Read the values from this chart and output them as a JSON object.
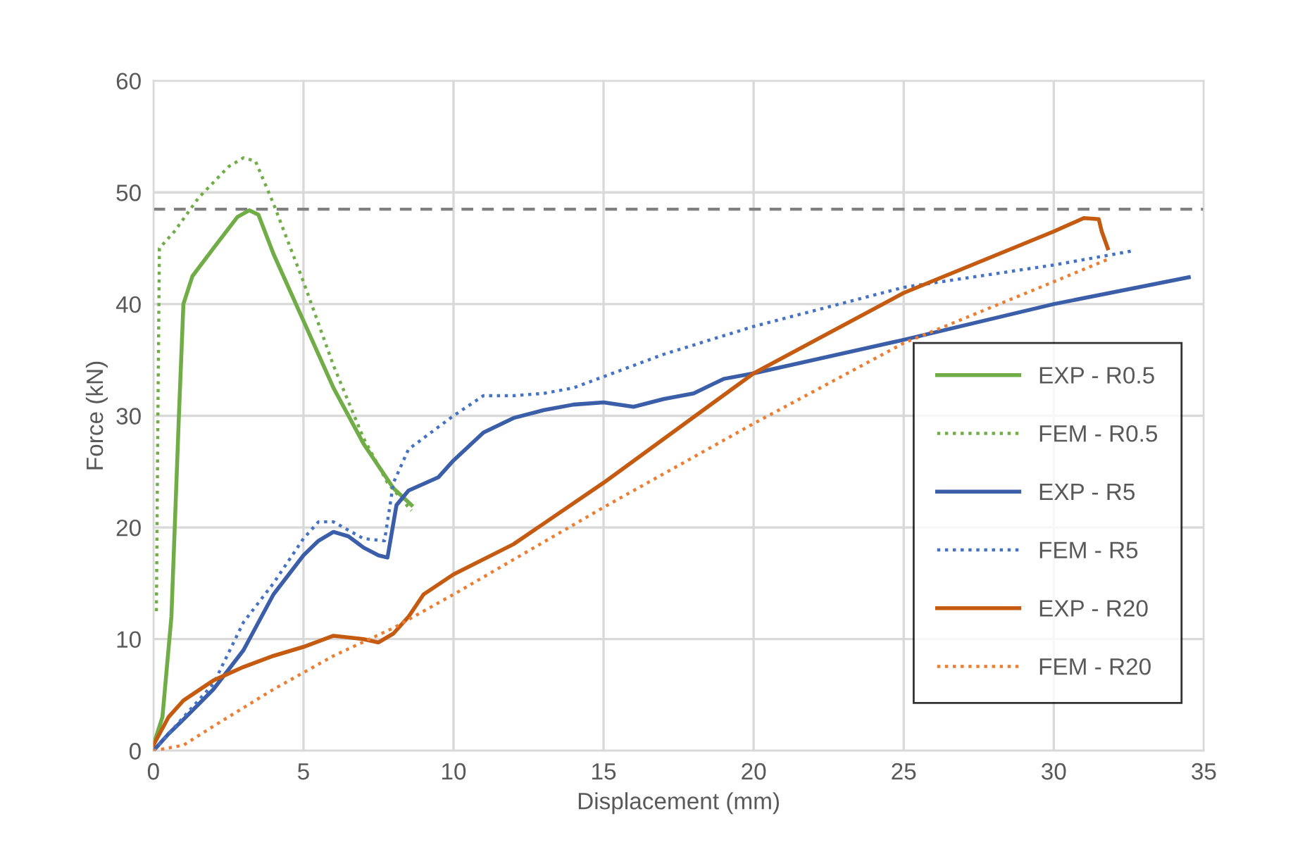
{
  "chart_data": {
    "type": "line",
    "xlabel": "Displacement (mm)",
    "ylabel": "Force (kN)",
    "xlim": [
      0,
      35
    ],
    "xticks": [
      0,
      5,
      10,
      15,
      20,
      25,
      30,
      35
    ],
    "ylim": [
      0,
      60
    ],
    "yticks": [
      0,
      10,
      20,
      30,
      40,
      50,
      60
    ],
    "grid": true,
    "legend": "right",
    "marker": "none",
    "ref_lines": [
      {
        "axis": "y",
        "value": 48.5,
        "color": "#808080",
        "line_style": "dashed"
      }
    ],
    "series": [
      {
        "name": "EXP - R0.5",
        "color": "#70ad47",
        "line_style": "solid",
        "x": [
          0,
          0.3,
          0.6,
          0.85,
          1.0,
          1.3,
          2,
          2.8,
          3.2,
          3.5,
          4,
          5,
          6,
          7,
          8,
          8.6
        ],
        "values": [
          0.5,
          3,
          12,
          30,
          40,
          42.5,
          45,
          47.8,
          48.4,
          48,
          44.5,
          38.5,
          32.5,
          27.5,
          23.5,
          22
        ]
      },
      {
        "name": "FEM - R0.5",
        "color": "#70ad47",
        "line_style": "dotted",
        "x": [
          0.1,
          0.15,
          0.2,
          0.7,
          1.5,
          2.5,
          3,
          3.4,
          4,
          5,
          6,
          7,
          7.8,
          8.6
        ],
        "values": [
          12.5,
          30,
          45,
          46.5,
          49.5,
          52.3,
          53.1,
          52.8,
          49,
          42,
          34.5,
          28,
          24,
          21.5
        ]
      },
      {
        "name": "EXP - R5",
        "color": "#3b5ea8",
        "line_style": "solid",
        "x": [
          0,
          0.5,
          1,
          2,
          3,
          4,
          5,
          5.5,
          6,
          6.5,
          7,
          7.5,
          7.8,
          8.1,
          8.5,
          9.5,
          10,
          11,
          12,
          13,
          14,
          15,
          16,
          17,
          18,
          19,
          20,
          25,
          30,
          34.5
        ],
        "values": [
          0,
          1.5,
          2.8,
          5.5,
          9,
          14,
          17.5,
          18.8,
          19.6,
          19.2,
          18.2,
          17.5,
          17.3,
          22,
          23.3,
          24.5,
          26,
          28.5,
          29.8,
          30.5,
          31,
          31.2,
          30.8,
          31.5,
          32,
          33.3,
          33.8,
          36.8,
          40,
          42.4
        ]
      },
      {
        "name": "FEM - R5",
        "color": "#4472c4",
        "line_style": "dotted",
        "x": [
          0,
          1,
          2,
          3,
          4,
          5,
          5.5,
          6,
          7,
          7.7,
          8,
          8.5,
          9,
          10,
          11,
          12,
          13,
          14,
          15,
          17,
          20,
          25,
          30,
          32.7
        ],
        "values": [
          0,
          3,
          6,
          11.5,
          15,
          19,
          20.5,
          20.5,
          19,
          18.8,
          24,
          27,
          28,
          30,
          31.8,
          31.8,
          32,
          32.5,
          33.5,
          35.5,
          38,
          41.5,
          43.5,
          44.8
        ]
      },
      {
        "name": "EXP - R20",
        "color": "#c55a11",
        "line_style": "solid",
        "x": [
          0,
          0.5,
          1,
          2,
          3,
          4,
          5,
          6,
          7,
          7.5,
          8,
          8.5,
          9,
          10,
          12,
          15,
          20,
          25,
          30,
          31,
          31.5,
          31.6,
          31.8
        ],
        "values": [
          0.5,
          3,
          4.5,
          6.3,
          7.5,
          8.5,
          9.3,
          10.3,
          10,
          9.7,
          10.5,
          12,
          14,
          15.8,
          18.5,
          24,
          33.8,
          41,
          46.5,
          47.7,
          47.6,
          46.5,
          45
        ]
      },
      {
        "name": "FEM - R20",
        "color": "#ed7d31",
        "line_style": "dotted",
        "x": [
          0,
          1,
          2,
          4,
          6,
          8,
          10,
          15,
          20,
          25,
          30,
          31.8
        ],
        "values": [
          0,
          0.5,
          2.2,
          5.5,
          8.5,
          11,
          14,
          21.8,
          29.3,
          36.5,
          42,
          44
        ]
      }
    ]
  }
}
